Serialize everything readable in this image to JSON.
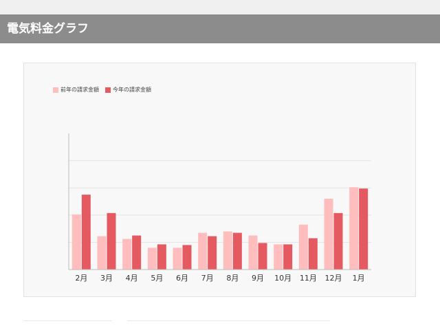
{
  "header": {
    "title": "電気料金グラフ"
  },
  "colors": {
    "header_bg": "#8c8c8c",
    "prev_year": "#ffbdbd",
    "this_year": "#e55a61",
    "grid": "#e4e4e4",
    "axis": "#bcbcbc"
  },
  "chart_data": {
    "type": "bar",
    "categories": [
      "2月",
      "3月",
      "4月",
      "5月",
      "6月",
      "7月",
      "8月",
      "9月",
      "10月",
      "11月",
      "12月",
      "1月"
    ],
    "series": [
      {
        "name": "前年の請求金額",
        "color": "#ffbdbd",
        "values": [
          4050,
          2450,
          2250,
          1600,
          1600,
          2700,
          2800,
          2500,
          1850,
          3300,
          5200,
          6050
        ]
      },
      {
        "name": "今年の請求金額",
        "color": "#e55a61",
        "values": [
          5500,
          4150,
          2500,
          1850,
          1800,
          2450,
          2700,
          1950,
          1850,
          2300,
          4150,
          5950
        ]
      }
    ],
    "ylim": [
      0,
      10000
    ],
    "grid": true,
    "legend": "top-left"
  }
}
